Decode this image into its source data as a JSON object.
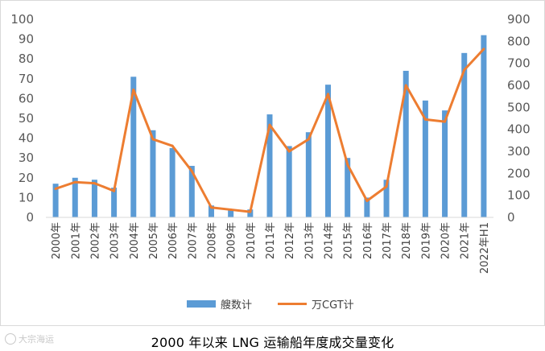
{
  "chart_data": {
    "type": "bar+line",
    "title": "",
    "caption": "2000 年以来 LNG 运输船年度成交量变化",
    "watermark": "大宗海运",
    "categories": [
      "2000年",
      "2001年",
      "2002年",
      "2003年",
      "2004年",
      "2005年",
      "2006年",
      "2007年",
      "2008年",
      "2009年",
      "2010年",
      "2011年",
      "2012年",
      "2013年",
      "2014年",
      "2015年",
      "2016年",
      "2017年",
      "2018年",
      "2019年",
      "2020年",
      "2021年",
      "2022年H1"
    ],
    "series": [
      {
        "name": "艘数计",
        "type": "bar",
        "axis": "left",
        "color": "#5B9BD5",
        "values": [
          17,
          20,
          19,
          15,
          71,
          44,
          35,
          26,
          6,
          4,
          4,
          52,
          36,
          43,
          67,
          30,
          10,
          19,
          74,
          59,
          54,
          83,
          92
        ]
      },
      {
        "name": "万CGT计",
        "type": "line",
        "axis": "right",
        "color": "#ED7D31",
        "values": [
          130,
          160,
          155,
          120,
          580,
          355,
          325,
          210,
          45,
          35,
          25,
          420,
          300,
          355,
          560,
          240,
          75,
          140,
          600,
          445,
          435,
          670,
          765
        ]
      }
    ],
    "y_left": {
      "min": 0,
      "max": 100,
      "ticks": [
        "0",
        "10",
        "20",
        "30",
        "40",
        "50",
        "60",
        "70",
        "80",
        "90",
        "100"
      ]
    },
    "y_right": {
      "min": 0,
      "max": 900,
      "ticks": [
        "0",
        "100",
        "200",
        "300",
        "400",
        "500",
        "600",
        "700",
        "800",
        "900"
      ]
    },
    "grid": false,
    "legend_position": "bottom"
  }
}
